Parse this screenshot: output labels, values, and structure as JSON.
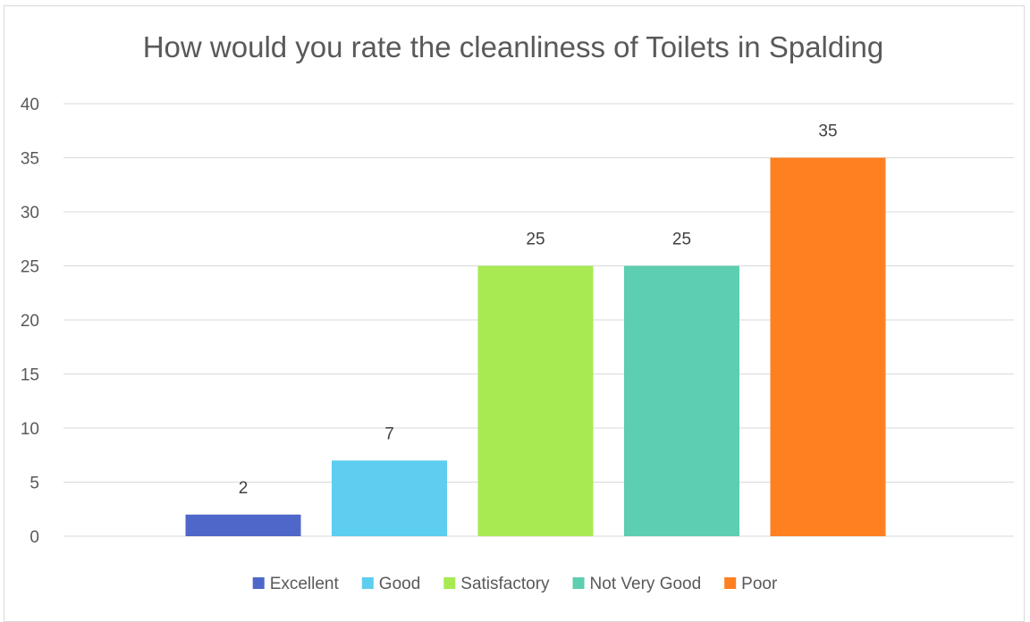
{
  "chart_data": {
    "type": "bar",
    "title": "How would you rate the cleanliness of Toilets in Spalding",
    "xlabel": "",
    "ylabel": "",
    "categories": [
      "Excellent",
      "Good",
      "Satisfactory",
      "Not Very Good",
      "Poor"
    ],
    "values": [
      2,
      7,
      25,
      25,
      35
    ],
    "colors": [
      "#4e67c8",
      "#5dceef",
      "#a7ea52",
      "#5dceaf",
      "#ff8021"
    ],
    "ylim": [
      0,
      40
    ],
    "yticks": [
      0,
      5,
      10,
      15,
      20,
      25,
      30,
      35,
      40
    ],
    "grid": true,
    "data_labels": true,
    "legend_position": "bottom",
    "legend": [
      "Excellent",
      "Good",
      "Satisfactory",
      "Not Very Good",
      "Poor"
    ]
  }
}
